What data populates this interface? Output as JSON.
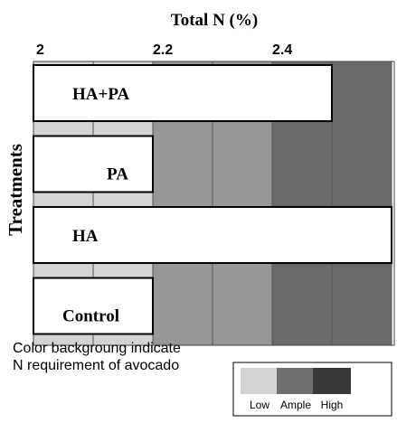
{
  "chart_data": {
    "type": "bar",
    "orientation": "horizontal",
    "title": "Total N (%)",
    "ylabel": "Treatments",
    "xlim": [
      2.0,
      2.5
    ],
    "x_ticks": [
      2.0,
      2.2,
      2.4
    ],
    "x_tick_labels": [
      "2",
      "2.2",
      "2.4"
    ],
    "categories": [
      "HA+PA",
      "PA",
      "HA",
      "Control"
    ],
    "values": [
      2.5,
      2.2,
      2.6,
      2.2
    ],
    "background_bands": [
      {
        "label": "Low",
        "from": 2.0,
        "to": 2.2,
        "color": "#d3d3d3"
      },
      {
        "label": "Ample",
        "from": 2.2,
        "to": 2.4,
        "color": "#979797"
      },
      {
        "label": "High",
        "from": 2.4,
        "to": 2.6,
        "color": "#6a6a6a"
      }
    ],
    "grid": true,
    "bar_color": "#ffffff",
    "legend": {
      "position": "bottom-right",
      "entries": [
        {
          "label": "Low",
          "color": "#d3d3d3"
        },
        {
          "label": "Ample",
          "color": "#6e6e6e"
        },
        {
          "label": "High",
          "color": "#383838"
        }
      ]
    },
    "note": [
      "Color backgroung indicate",
      "N requirement of avocado"
    ]
  }
}
